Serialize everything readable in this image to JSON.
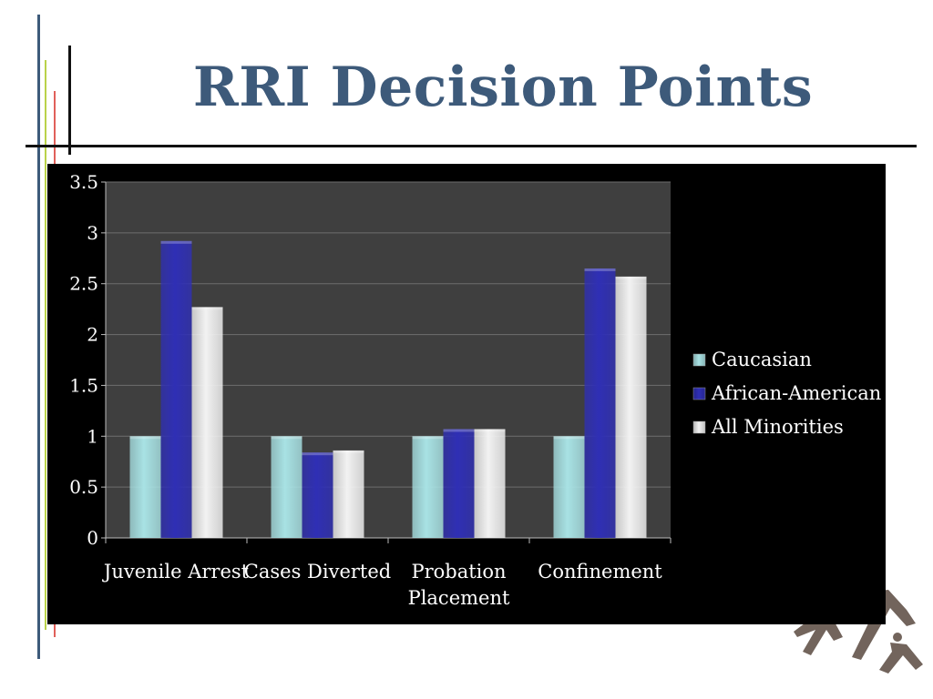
{
  "slide": {
    "title": "RRI Decision Points"
  },
  "colors": {
    "title": "#3d5a7a",
    "chart_background": "#000000",
    "plot_background": "#3f3f3f",
    "grid": "#6e6e6e",
    "caucasian": "#a8e2e4",
    "african_american": "#2f2fb5",
    "all_minorities": "#f2f2f2"
  },
  "chart_data": {
    "type": "bar",
    "categories": [
      [
        "Juvenile Arrest"
      ],
      [
        "Cases Diverted"
      ],
      [
        "Probation",
        "Placement"
      ],
      [
        "Confinement"
      ]
    ],
    "series": [
      {
        "name": "Caucasian",
        "values": [
          1,
          1,
          1,
          1
        ]
      },
      {
        "name": "African-American",
        "values": [
          2.92,
          0.84,
          1.07,
          2.65
        ]
      },
      {
        "name": "All Minorities",
        "values": [
          2.27,
          0.86,
          1.07,
          2.57
        ]
      }
    ],
    "ylim": [
      0,
      3.5
    ],
    "yticks": [
      "0",
      "0.5",
      "1",
      "1.5",
      "2",
      "2.5",
      "3",
      "3.5"
    ],
    "grid": true,
    "legend_position": "right"
  }
}
